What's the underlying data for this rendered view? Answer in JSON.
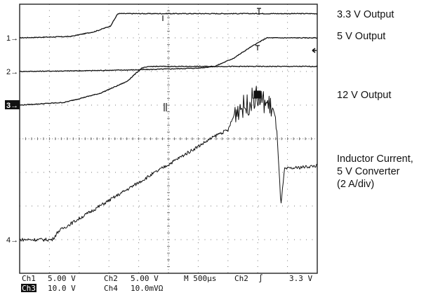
{
  "chart_data": {
    "type": "line",
    "grid": true,
    "graticule": {
      "h_divisions": 10,
      "v_divisions": 8
    },
    "time_per_div_us": 500,
    "series": [
      {
        "name": "3.3 V Output",
        "channel_marker": "1",
        "volts_per_div": 5.0,
        "points": [
          [
            0,
            0
          ],
          [
            1.7,
            0.04
          ],
          [
            2.5,
            0.18
          ],
          [
            3.05,
            0.35
          ],
          [
            3.3,
            0.72
          ],
          [
            10,
            0.72
          ]
        ]
      },
      {
        "name": "5 V Output",
        "channel_marker": "2",
        "volts_per_div": 5.0,
        "points": [
          [
            0,
            0
          ],
          [
            2,
            0.02
          ],
          [
            4,
            0.05
          ],
          [
            6,
            0.1
          ],
          [
            6.55,
            0.15
          ],
          [
            7.2,
            0.4
          ],
          [
            7.75,
            0.72
          ],
          [
            8.3,
            1.0
          ],
          [
            10,
            1.0
          ]
        ]
      },
      {
        "name": "12 V Output",
        "channel_marker": "3",
        "volts_per_div": 10.0,
        "points": [
          [
            0,
            0
          ],
          [
            1.5,
            0.08
          ],
          [
            2.7,
            0.35
          ],
          [
            3.6,
            0.7
          ],
          [
            4.1,
            1.1
          ],
          [
            4.4,
            1.15
          ],
          [
            10,
            1.15
          ]
        ]
      },
      {
        "name": "Inductor Current, 5 V Converter (2 A/div)",
        "channel_marker": "4",
        "scale_readout": "10.0mVΩ",
        "points": [
          [
            0,
            0
          ],
          [
            1.1,
            0
          ],
          [
            1.3,
            0.25
          ],
          [
            6.7,
            3.15
          ],
          [
            7.0,
            3.25
          ],
          [
            7.25,
            3.8
          ],
          [
            7.4,
            3.95
          ],
          [
            7.6,
            3.95
          ],
          [
            7.9,
            4.25
          ],
          [
            8.3,
            4.05
          ],
          [
            8.5,
            3.9
          ],
          [
            8.65,
            3.15
          ],
          [
            8.78,
            1.0
          ],
          [
            8.9,
            2.1
          ],
          [
            10,
            2.2
          ]
        ]
      }
    ]
  },
  "channel_markers": [
    "1",
    "2",
    "3",
    "4"
  ],
  "right_labels": {
    "v33": "3.3 V Output",
    "v5": "5 V Output",
    "v12": "12 V Output",
    "inductor_line1": "Inductor Current,",
    "inductor_line2": "5 V Converter",
    "inductor_line3": "(2 A/div)"
  },
  "readout": {
    "ch1": "Ch1",
    "ch1_scale": "5.00 V",
    "ch2": "Ch2",
    "ch2_scale": "5.00 V",
    "timebase": "M 500µs",
    "trigger_source": "Ch2",
    "trigger_slope": "∫",
    "trigger_level": "3.3 V",
    "ch3": "Ch3",
    "ch3_scale": "10.0 V",
    "ch4": "Ch4",
    "ch4_scale": "10.0mVΩ"
  },
  "colors": {
    "trace": "#111111",
    "grid": "#777777",
    "background": "#ffffff"
  }
}
